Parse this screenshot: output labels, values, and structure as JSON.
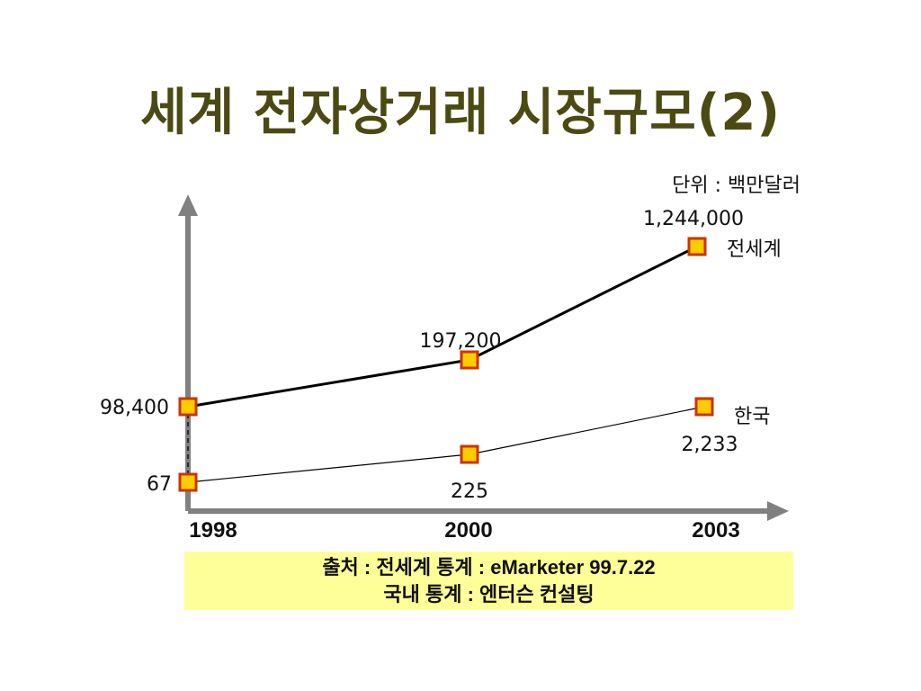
{
  "title": "세계 전자상거래 시장규모(2)",
  "source": {
    "line1": "출처 : 전세계 통계 : eMarketer 99.7.22",
    "line2": "국내 통계 : 엔터슨 컨설팅"
  },
  "colors": {
    "title": "#4a4a12",
    "axis": "#808080",
    "marker_fill": "#ffcc00",
    "marker_border": "#cc3300",
    "source_bg": "#ffff99"
  },
  "chart_data": {
    "type": "line",
    "categories": [
      "1998",
      "2000",
      "2003"
    ],
    "unit_label": "단위 : 백만달러",
    "series": [
      {
        "name": "전세계",
        "values": [
          98400,
          197200,
          1244000
        ],
        "value_labels": [
          "98,400",
          "197,200",
          "1,244,000"
        ]
      },
      {
        "name": "한국",
        "values": [
          67,
          225,
          2233
        ],
        "value_labels": [
          "67",
          "225",
          "2,233"
        ]
      }
    ],
    "grid": false,
    "scale": "not to scale"
  }
}
